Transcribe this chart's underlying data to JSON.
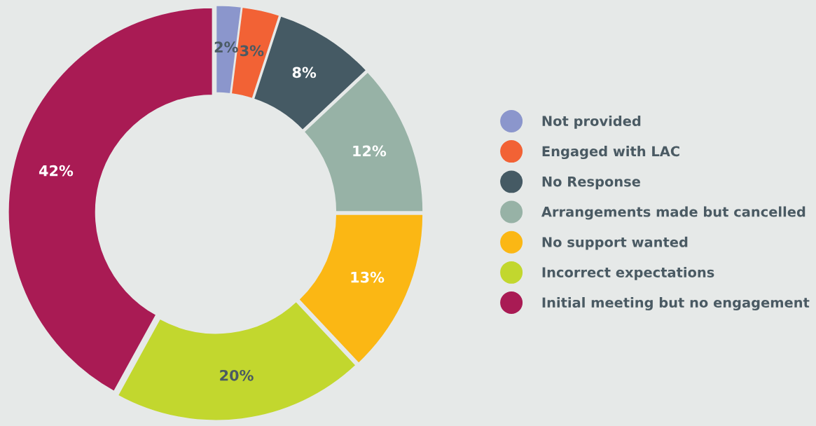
{
  "chart_data": {
    "type": "donut",
    "categories": [
      "Not provided",
      "Engaged with LAC",
      "No Response",
      "Arrangements made but cancelled",
      "No support wanted",
      "Incorrect expectations",
      "Initial meeting but no engagement"
    ],
    "values": [
      2,
      3,
      8,
      12,
      13,
      20,
      42
    ],
    "colors": [
      "#8b96cc",
      "#f26235",
      "#455a64",
      "#97b2a6",
      "#fbb714",
      "#c2d72e",
      "#a91b54"
    ],
    "value_labels": [
      "2%",
      "3%",
      "8%",
      "12%",
      "13%",
      "20%",
      "42%"
    ],
    "legend": "right"
  }
}
